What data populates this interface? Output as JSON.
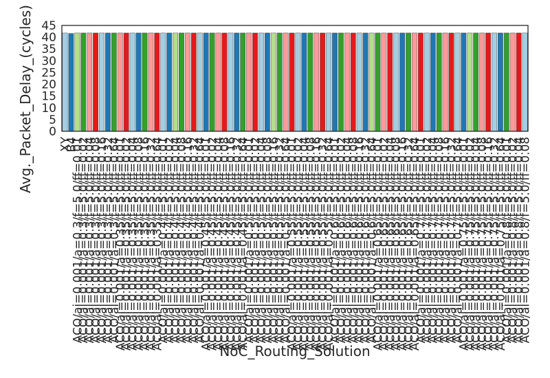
{
  "chart_data": {
    "type": "bar",
    "title": "",
    "xlabel": "NoC_Routing_Solution",
    "ylabel": "Avg._Packet_Delay_(cycles)",
    "ylim": [
      0,
      45
    ],
    "yticks": [
      0,
      5,
      10,
      15,
      20,
      25,
      30,
      35,
      40,
      45
    ],
    "grid": false,
    "legend": "none",
    "palette": [
      "#a6cee3",
      "#1f78b4",
      "#b2df8a",
      "#33a02c",
      "#fb9a99",
      "#e31a1c"
    ],
    "palette_order": [
      0,
      1,
      2,
      3,
      4,
      5,
      0,
      1,
      3,
      4,
      5,
      0,
      1,
      3,
      4,
      5
    ],
    "categories": [
      "XY",
      "B4",
      "ACO/ai=0.001/a=0.3/f=5.0/ff=0.01",
      "ACO/ai=0.001/a=0.3/f=5.0/ff=0.02",
      "ACO/ai=0.001/a=0.3/f=5.0/ff=0.04",
      "ACO/ai=0.001/a=0.3/f=5.0/ff=0.08",
      "ACO/ai=0.001/a=0.3/f=5.0/ff=0.16",
      "ACO/ai=0.001/a=0.3/f=5.0/ff=0.32",
      "ACO/ai=0.001/a=0.3/f=5.0/ff=0.64",
      "ACO/ai=0.001/a=0.35/f=5.0/ff=0.01",
      "ACO/ai=0.001/a=0.35/f=5.0/ff=0.02",
      "ACO/ai=0.001/a=0.35/f=5.0/ff=0.04",
      "ACO/ai=0.001/a=0.35/f=5.0/ff=0.08",
      "ACO/ai=0.001/a=0.35/f=5.0/ff=0.16",
      "ACO/ai=0.001/a=0.35/f=5.0/ff=0.32",
      "ACO/ai=0.001/a=0.35/f=5.0/ff=0.64",
      "ACO/ai=0.001/a=0.4/f=5.0/ff=0.01",
      "ACO/ai=0.001/a=0.4/f=5.0/ff=0.02",
      "ACO/ai=0.001/a=0.4/f=5.0/ff=0.04",
      "ACO/ai=0.001/a=0.4/f=5.0/ff=0.08",
      "ACO/ai=0.001/a=0.4/f=5.0/ff=0.16",
      "ACO/ai=0.001/a=0.4/f=5.0/ff=0.32",
      "ACO/ai=0.001/a=0.4/f=5.0/ff=0.64",
      "ACO/ai=0.001/a=0.45/f=5.0/ff=0.01",
      "ACO/ai=0.001/a=0.45/f=5.0/ff=0.02",
      "ACO/ai=0.001/a=0.45/f=5.0/ff=0.04",
      "ACO/ai=0.001/a=0.45/f=5.0/ff=0.08",
      "ACO/ai=0.001/a=0.45/f=5.0/ff=0.16",
      "ACO/ai=0.001/a=0.45/f=5.0/ff=0.32",
      "ACO/ai=0.001/a=0.45/f=5.0/ff=0.64",
      "ACO/ai=0.001/a=0.5/f=5.0/ff=0.01",
      "ACO/ai=0.001/a=0.5/f=5.0/ff=0.02",
      "ACO/ai=0.001/a=0.5/f=5.0/ff=0.04",
      "ACO/ai=0.001/a=0.5/f=5.0/ff=0.08",
      "ACO/ai=0.001/a=0.5/f=5.0/ff=0.16",
      "ACO/ai=0.001/a=0.5/f=5.0/ff=0.32",
      "ACO/ai=0.001/a=0.5/f=5.0/ff=0.64",
      "ACO/ai=0.001/a=0.55/f=5.0/ff=0.01",
      "ACO/ai=0.001/a=0.55/f=5.0/ff=0.02",
      "ACO/ai=0.001/a=0.55/f=5.0/ff=0.04",
      "ACO/ai=0.001/a=0.55/f=5.0/ff=0.08",
      "ACO/ai=0.001/a=0.55/f=5.0/ff=0.16",
      "ACO/ai=0.001/a=0.55/f=5.0/ff=0.32",
      "ACO/ai=0.001/a=0.55/f=5.0/ff=0.64",
      "ACO/ai=0.001/a=0.6/f=5.0/ff=0.01",
      "ACO/ai=0.001/a=0.6/f=5.0/ff=0.02",
      "ACO/ai=0.001/a=0.6/f=5.0/ff=0.04",
      "ACO/ai=0.001/a=0.6/f=5.0/ff=0.08",
      "ACO/ai=0.001/a=0.6/f=5.0/ff=0.16",
      "ACO/ai=0.001/a=0.6/f=5.0/ff=0.32",
      "ACO/ai=0.001/a=0.6/f=5.0/ff=0.64",
      "ACO/ai=0.001/a=0.65/f=5.0/ff=0.01",
      "ACO/ai=0.001/a=0.65/f=5.0/ff=0.02",
      "ACO/ai=0.001/a=0.65/f=5.0/ff=0.04",
      "ACO/ai=0.001/a=0.65/f=5.0/ff=0.08",
      "ACO/ai=0.001/a=0.65/f=5.0/ff=0.16",
      "ACO/ai=0.001/a=0.65/f=5.0/ff=0.32",
      "ACO/ai=0.001/a=0.65/f=5.0/ff=0.64",
      "ACO/ai=0.001/a=0.7/f=5.0/ff=0.01",
      "ACO/ai=0.001/a=0.7/f=5.0/ff=0.02",
      "ACO/ai=0.001/a=0.7/f=5.0/ff=0.04",
      "ACO/ai=0.001/a=0.7/f=5.0/ff=0.08",
      "ACO/ai=0.001/a=0.7/f=5.0/ff=0.16",
      "ACO/ai=0.001/a=0.7/f=5.0/ff=0.32",
      "ACO/ai=0.001/a=0.7/f=5.0/ff=0.64",
      "ACO/ai=0.001/a=0.75/f=5.0/ff=0.01",
      "ACO/ai=0.001/a=0.75/f=5.0/ff=0.02",
      "ACO/ai=0.001/a=0.75/f=5.0/ff=0.04",
      "ACO/ai=0.001/a=0.75/f=5.0/ff=0.08",
      "ACO/ai=0.001/a=0.75/f=5.0/ff=0.16",
      "ACO/ai=0.001/a=0.75/f=5.0/ff=0.32",
      "ACO/ai=0.001/a=0.75/f=5.0/ff=0.64",
      "ACO/ai=0.001/a=0.8/f=5.0/ff=0.01",
      "ACO/ai=0.001/a=0.8/f=5.0/ff=0.02",
      "ACO/ai=0.001/a=0.8/f=5.0/ff=0.04",
      "ACO/ai=0.001/a=0.8/f=5.0/ff=0.08"
    ],
    "values": [
      41.8,
      41.6,
      41.8,
      41.8,
      41.8,
      41.8,
      41.8,
      41.8,
      41.8,
      41.8,
      41.8,
      41.8,
      41.8,
      41.8,
      41.8,
      41.8,
      41.8,
      41.8,
      41.8,
      41.8,
      41.8,
      41.8,
      41.8,
      41.8,
      41.8,
      41.8,
      41.8,
      41.8,
      41.8,
      41.8,
      41.8,
      41.8,
      41.8,
      41.8,
      41.8,
      41.8,
      41.8,
      41.8,
      41.8,
      41.8,
      41.8,
      41.8,
      41.8,
      41.8,
      41.8,
      41.8,
      41.8,
      41.8,
      41.8,
      41.8,
      41.8,
      41.8,
      41.8,
      41.8,
      41.8,
      41.8,
      41.8,
      41.8,
      41.8,
      41.8,
      41.8,
      41.8,
      41.8,
      41.8,
      41.8,
      41.8,
      41.8,
      41.8,
      41.8,
      41.8,
      41.8,
      41.8,
      41.8,
      41.8,
      41.8,
      41.8
    ]
  }
}
